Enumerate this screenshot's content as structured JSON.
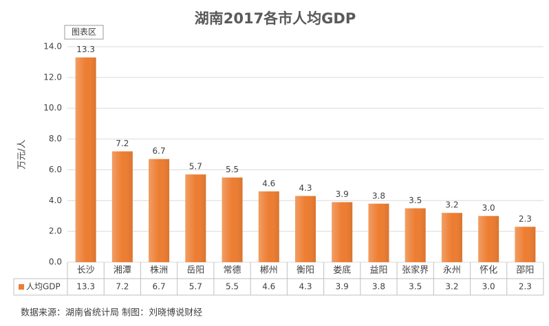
{
  "chart_data": {
    "type": "bar",
    "title": "湖南2017各市人均GDP",
    "tooltip": "图表区",
    "y_label": "万元/人",
    "categories": [
      "长沙",
      "湘潭",
      "株洲",
      "岳阳",
      "常德",
      "郴州",
      "衡阳",
      "娄底",
      "益阳",
      "张家界",
      "永州",
      "怀化",
      "邵阳"
    ],
    "series": [
      {
        "name": "人均GDP",
        "color": "#ed7d31",
        "values": [
          13.3,
          7.2,
          6.7,
          5.7,
          5.5,
          4.6,
          4.3,
          3.9,
          3.8,
          3.5,
          3.2,
          3.0,
          2.3
        ],
        "value_labels": [
          "13.3",
          "7.2",
          "6.7",
          "5.7",
          "5.5",
          "4.6",
          "4.3",
          "3.9",
          "3.8",
          "3.5",
          "3.2",
          "3.0",
          "2.3"
        ]
      }
    ],
    "ylim": [
      0,
      14
    ],
    "yticks": [
      {
        "value": 0,
        "label": "0.0"
      },
      {
        "value": 2,
        "label": "2.0"
      },
      {
        "value": 4,
        "label": "4.0"
      },
      {
        "value": 6,
        "label": "6.0"
      },
      {
        "value": 8,
        "label": "8.0"
      },
      {
        "value": 10,
        "label": "10.0"
      },
      {
        "value": 12,
        "label": "12.0"
      },
      {
        "value": 14,
        "label": "14.0"
      }
    ],
    "grid": true,
    "source": "数据来源：湖南省统计局 制图：刘晓博说财经"
  }
}
